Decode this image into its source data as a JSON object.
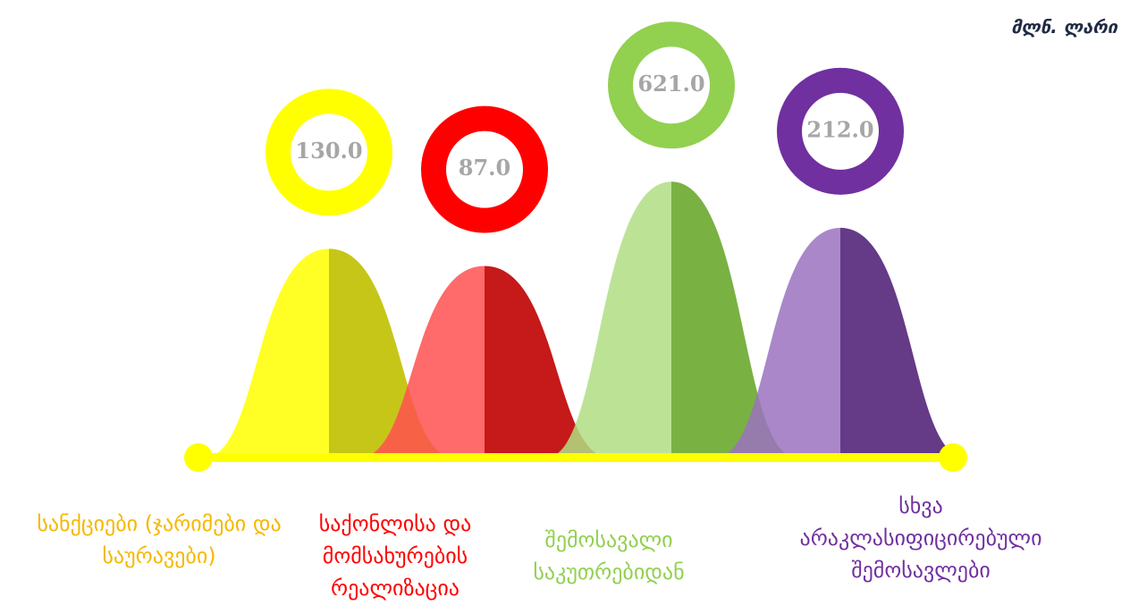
{
  "chart_data": {
    "type": "bell",
    "unit": "მლნ. ლარი",
    "categories": [
      "სანქციები (ჯარიმები და საურავები)",
      "საქონლისა და მომსახურების რეალიზაცია",
      "შემოსავალი საკუთრებიდან",
      "სხვა არაკლასიფიცირებული შემოსავლები"
    ],
    "values": [
      130,
      87,
      621,
      212
    ],
    "value_labels": [
      "130.0",
      "87.0",
      "621.0",
      "212.0"
    ],
    "colors": [
      "#ffff00",
      "#ff0000",
      "#92d050",
      "#7030a0"
    ]
  }
}
